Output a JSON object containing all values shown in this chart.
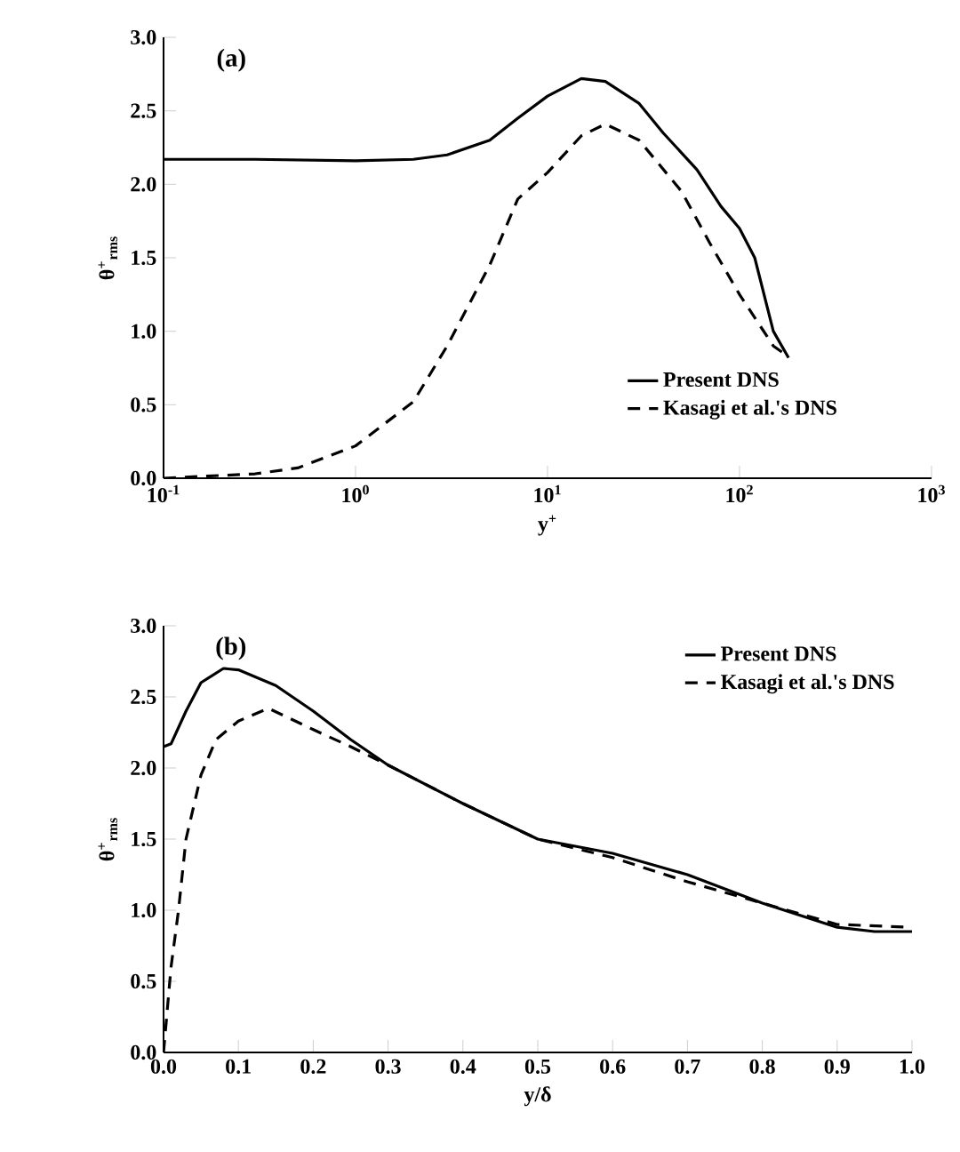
{
  "chart_data": [
    {
      "type": "line",
      "annotations": [
        "(a)"
      ],
      "xlabel": "y$^{+}$",
      "ylabel": "θ$^{+}$$_{rms}$",
      "log": "x",
      "xlim": [
        0.1,
        1000
      ],
      "ylim": [
        0,
        3.0
      ],
      "xticks": [
        {
          "value": 0.1,
          "label": "10$^{-1}$"
        },
        {
          "value": 1,
          "label": "10$^{0}$"
        },
        {
          "value": 10,
          "label": "10$^{1}$"
        },
        {
          "value": 100,
          "label": "10$^{2}$"
        },
        {
          "value": 1000,
          "label": "10$^{3}$"
        }
      ],
      "yticks": [
        {
          "value": 0,
          "label": "0.0"
        },
        0.5,
        {
          "value": 1,
          "label": "1.0"
        },
        1.5,
        {
          "value": 2,
          "label": "2.0"
        },
        2.5,
        {
          "value": 3,
          "label": "3.0"
        }
      ],
      "grid": false,
      "legend": "bottom right",
      "marker": "none",
      "series": [
        {
          "name": "Present DNS",
          "color": "#000000",
          "line_style": "solid",
          "x": [
            0.1,
            0.3,
            1,
            2,
            3,
            5,
            7,
            10,
            15,
            20,
            30,
            40,
            60,
            80,
            100,
            120,
            150,
            180
          ],
          "values": [
            2.17,
            2.17,
            2.16,
            2.17,
            2.2,
            2.3,
            2.45,
            2.6,
            2.72,
            2.7,
            2.55,
            2.35,
            2.1,
            1.85,
            1.7,
            1.5,
            1.0,
            0.82
          ]
        },
        {
          "name": "Kasagi et al.'s DNS",
          "color": "#000000",
          "line_style": "dashed",
          "x": [
            0.1,
            0.3,
            0.5,
            1,
            2,
            3,
            5,
            7,
            10,
            15,
            20,
            30,
            50,
            70,
            100,
            150,
            170
          ],
          "values": [
            0.0,
            0.03,
            0.07,
            0.22,
            0.52,
            0.9,
            1.45,
            1.9,
            2.08,
            2.33,
            2.41,
            2.3,
            1.95,
            1.6,
            1.25,
            0.9,
            0.85
          ]
        }
      ]
    },
    {
      "type": "line",
      "annotations": [
        "(b)"
      ],
      "xlabel": "y/δ",
      "ylabel": "θ$^{+}$$_{rms}$",
      "xlim": [
        0,
        1.0
      ],
      "ylim": [
        0,
        3.0
      ],
      "xticks": [
        {
          "value": 0,
          "label": "0.0"
        },
        0.1,
        0.2,
        0.3,
        0.4,
        0.5,
        0.6,
        0.7,
        0.8,
        0.9,
        {
          "value": 1,
          "label": "1.0"
        }
      ],
      "yticks": [
        {
          "value": 0,
          "label": "0.0"
        },
        0.5,
        {
          "value": 1,
          "label": "1.0"
        },
        1.5,
        {
          "value": 2,
          "label": "2.0"
        },
        2.5,
        {
          "value": 3,
          "label": "3.0"
        }
      ],
      "grid": false,
      "legend": "top right",
      "marker": "none",
      "series": [
        {
          "name": "Present DNS",
          "color": "#000000",
          "line_style": "solid",
          "x": [
            0,
            0.01,
            0.03,
            0.05,
            0.08,
            0.1,
            0.15,
            0.2,
            0.25,
            0.3,
            0.4,
            0.5,
            0.6,
            0.7,
            0.8,
            0.9,
            0.95,
            1.0
          ],
          "values": [
            2.15,
            2.17,
            2.4,
            2.6,
            2.7,
            2.69,
            2.58,
            2.4,
            2.2,
            2.02,
            1.75,
            1.5,
            1.4,
            1.25,
            1.05,
            0.88,
            0.85,
            0.85
          ]
        },
        {
          "name": "Kasagi et al.'s DNS",
          "color": "#000000",
          "line_style": "dashed",
          "x": [
            0,
            0.005,
            0.01,
            0.02,
            0.03,
            0.05,
            0.07,
            0.1,
            0.14,
            0.2,
            0.25,
            0.3,
            0.4,
            0.5,
            0.6,
            0.7,
            0.8,
            0.9,
            1.0
          ],
          "values": [
            0.0,
            0.3,
            0.6,
            1.0,
            1.5,
            1.95,
            2.2,
            2.33,
            2.42,
            2.27,
            2.15,
            2.02,
            1.75,
            1.5,
            1.37,
            1.2,
            1.05,
            0.9,
            0.88
          ]
        }
      ]
    }
  ]
}
